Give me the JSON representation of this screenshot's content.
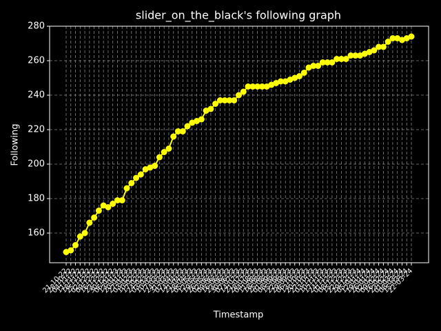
{
  "chart_data": {
    "type": "line",
    "title": "slider_on_the_black's following graph",
    "x_label": "Timestamp",
    "y_label": "Following",
    "categories": [
      "21-10-22",
      "28-10-22",
      "04-11-22",
      "11-11-22",
      "18-11-22",
      "25-11-22",
      "02-12-22",
      "09-12-22",
      "16-12-22",
      "23-12-22",
      "30-12-22",
      "06-01-23",
      "13-01-23",
      "20-01-23",
      "27-01-23",
      "03-02-23",
      "10-02-23",
      "17-02-23",
      "24-02-23",
      "03-03-23",
      "10-03-23",
      "17-03-23",
      "24-03-23",
      "31-03-23",
      "07-04-23",
      "14-04-23",
      "21-04-23",
      "28-04-23",
      "05-05-23",
      "12-05-23",
      "19-05-23",
      "26-05-23",
      "02-06-23",
      "09-06-23",
      "16-06-23",
      "23-06-23",
      "30-06-23",
      "07-07-23",
      "14-07-23",
      "21-07-23",
      "28-07-23",
      "04-08-23",
      "11-08-23",
      "18-08-23",
      "25-08-23",
      "01-09-23",
      "08-09-23",
      "15-09-23",
      "22-09-23",
      "29-09-23",
      "06-10-23",
      "13-10-23",
      "20-10-23",
      "27-10-23",
      "03-11-23",
      "10-11-23",
      "17-11-23",
      "24-11-23",
      "01-12-23",
      "08-12-23",
      "15-12-23",
      "22-12-23",
      "29-12-23",
      "05-01-24",
      "12-01-24",
      "19-01-24",
      "26-01-24",
      "02-02-24",
      "09-02-24",
      "16-02-24",
      "23-02-24",
      "01-03-24",
      "08-03-24",
      "15-03-24",
      "22-03-24"
    ],
    "values": [
      149,
      150,
      153,
      158,
      160,
      166,
      169,
      173,
      176,
      175,
      177,
      179,
      179,
      186,
      189,
      192,
      194,
      197,
      198,
      199,
      204,
      207,
      209,
      216,
      219,
      219,
      222,
      224,
      225,
      226,
      231,
      232,
      235,
      237,
      237,
      237,
      237,
      240,
      242,
      245,
      245,
      245,
      245,
      245,
      246,
      247,
      248,
      248,
      249,
      250,
      251,
      253,
      256,
      257,
      257,
      259,
      259,
      259,
      261,
      261,
      261,
      263,
      263,
      263,
      264,
      265,
      266,
      268,
      268,
      271,
      273,
      273,
      272,
      273,
      274
    ],
    "color": "#ffff00",
    "ylim": [
      142.8,
      280
    ],
    "yticks": [
      160,
      180,
      200,
      220,
      240,
      260,
      280
    ],
    "grid": true
  }
}
